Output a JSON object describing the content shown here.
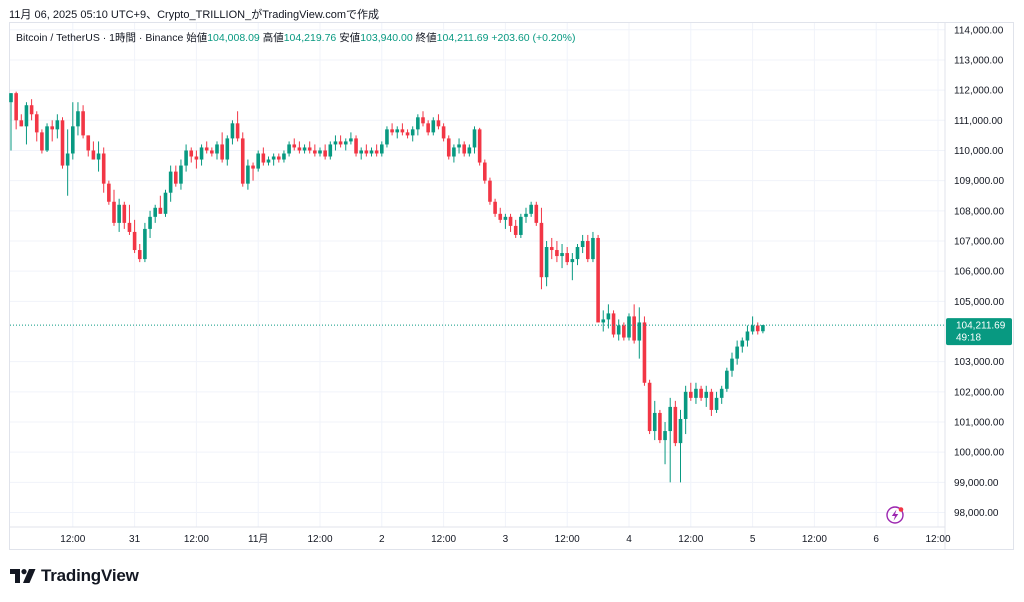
{
  "header": {
    "text": "11月 06, 2025 05:10 UTC+9、Crypto_TRILLION_がTradingView.comで作成"
  },
  "legend": {
    "symbol": "Bitcoin / TetherUS · 1時間 · Binance",
    "open_label": "始値",
    "open": "104,008.09",
    "high_label": "高値",
    "high": "104,219.76",
    "low_label": "安値",
    "low": "103,940.00",
    "close_label": "終値",
    "close": "104,211.69",
    "change": "+203.60 (+0.20%)"
  },
  "price_tag": {
    "price": "104,211.69",
    "countdown": "49:18"
  },
  "branding": {
    "name": "TradingView"
  },
  "colors": {
    "up": "#089981",
    "down": "#f23645",
    "grid": "#f0f3fa",
    "axis_text": "#131722",
    "tag": "#089981"
  },
  "chart_data": {
    "type": "candlestick",
    "interval": "1h",
    "ylim": [
      97700,
      114300
    ],
    "y_ticks": [
      {
        "value": 114000,
        "label": "114,000.00"
      },
      {
        "value": 113000,
        "label": "113,000.00"
      },
      {
        "value": 112000,
        "label": "112,000.00"
      },
      {
        "value": 111000,
        "label": "111,000.00"
      },
      {
        "value": 110000,
        "label": "110,000.00"
      },
      {
        "value": 109000,
        "label": "109,000.00"
      },
      {
        "value": 108000,
        "label": "108,000.00"
      },
      {
        "value": 107000,
        "label": "107,000.00"
      },
      {
        "value": 106000,
        "label": "106,000.00"
      },
      {
        "value": 105000,
        "label": "105,000.00"
      },
      {
        "value": 103000,
        "label": "103,000.00"
      },
      {
        "value": 102000,
        "label": "102,000.00"
      },
      {
        "value": 101000,
        "label": "101,000.00"
      },
      {
        "value": 100000,
        "label": "100,000.00"
      },
      {
        "value": 99000,
        "label": "99,000.00"
      },
      {
        "value": 98000,
        "label": "98,000.00"
      }
    ],
    "x_ticks": [
      {
        "index": 12,
        "label": "12:00"
      },
      {
        "index": 24,
        "label": "31"
      },
      {
        "index": 36,
        "label": "12:00"
      },
      {
        "index": 48,
        "label": "11月"
      },
      {
        "index": 60,
        "label": "12:00"
      },
      {
        "index": 72,
        "label": "2"
      },
      {
        "index": 84,
        "label": "12:00"
      },
      {
        "index": 96,
        "label": "3"
      },
      {
        "index": 108,
        "label": "12:00"
      },
      {
        "index": 120,
        "label": "4"
      },
      {
        "index": 132,
        "label": "12:00"
      },
      {
        "index": 144,
        "label": "5"
      },
      {
        "index": 156,
        "label": "12:00"
      },
      {
        "index": 168,
        "label": "6"
      },
      {
        "index": 180,
        "label": "12:00"
      }
    ],
    "last_price": 104211.69,
    "candles": [
      [
        111600,
        111900,
        110000,
        111900
      ],
      [
        111900,
        111950,
        110700,
        111000
      ],
      [
        111000,
        111200,
        110800,
        110800
      ],
      [
        110800,
        111600,
        110200,
        111500
      ],
      [
        111500,
        111700,
        111000,
        111200
      ],
      [
        111200,
        111300,
        110300,
        110600
      ],
      [
        110600,
        110700,
        109900,
        110000
      ],
      [
        110000,
        110900,
        109950,
        110800
      ],
      [
        110800,
        111000,
        110300,
        110700
      ],
      [
        110700,
        111200,
        110400,
        111000
      ],
      [
        111000,
        111100,
        109400,
        109500
      ],
      [
        109500,
        110700,
        108500,
        109900
      ],
      [
        109900,
        111600,
        109700,
        110800
      ],
      [
        110800,
        111600,
        110500,
        111300
      ],
      [
        111300,
        111500,
        110400,
        110500
      ],
      [
        110500,
        110500,
        109800,
        110000
      ],
      [
        110000,
        110300,
        109700,
        109700
      ],
      [
        109700,
        110300,
        109300,
        109900
      ],
      [
        109900,
        110100,
        108600,
        108900
      ],
      [
        108900,
        109000,
        108200,
        108300
      ],
      [
        108300,
        108700,
        107500,
        107600
      ],
      [
        107600,
        108400,
        107300,
        108200
      ],
      [
        108200,
        108300,
        107400,
        107600
      ],
      [
        107600,
        108200,
        107200,
        107300
      ],
      [
        107300,
        107700,
        106600,
        106700
      ],
      [
        106700,
        106900,
        106300,
        106400
      ],
      [
        106400,
        107600,
        106300,
        107400
      ],
      [
        107400,
        108000,
        107100,
        107800
      ],
      [
        107800,
        108200,
        107600,
        108100
      ],
      [
        108100,
        108500,
        107900,
        107900
      ],
      [
        107900,
        108700,
        107800,
        108600
      ],
      [
        108600,
        109500,
        108300,
        109300
      ],
      [
        109300,
        109500,
        108800,
        108900
      ],
      [
        108900,
        109700,
        108700,
        109500
      ],
      [
        109500,
        110200,
        109300,
        110000
      ],
      [
        110000,
        110100,
        109600,
        109800
      ],
      [
        109800,
        110000,
        109400,
        109700
      ],
      [
        109700,
        110200,
        109500,
        110100
      ],
      [
        110100,
        110300,
        109900,
        110000
      ],
      [
        110000,
        110100,
        109800,
        109900
      ],
      [
        109900,
        110300,
        109700,
        110200
      ],
      [
        110200,
        110600,
        109600,
        109700
      ],
      [
        109700,
        110500,
        109500,
        110400
      ],
      [
        110400,
        111000,
        110200,
        110900
      ],
      [
        110900,
        111300,
        110300,
        110400
      ],
      [
        110400,
        110600,
        108800,
        108900
      ],
      [
        108900,
        109700,
        108700,
        109500
      ],
      [
        109500,
        109600,
        109000,
        109400
      ],
      [
        109400,
        110000,
        109300,
        109900
      ],
      [
        109900,
        110100,
        109500,
        109600
      ],
      [
        109600,
        109800,
        109500,
        109700
      ],
      [
        109700,
        109900,
        109500,
        109800
      ],
      [
        109800,
        109900,
        109600,
        109700
      ],
      [
        109700,
        110000,
        109600,
        109900
      ],
      [
        109900,
        110300,
        109800,
        110200
      ],
      [
        110200,
        110400,
        110000,
        110100
      ],
      [
        110100,
        110300,
        109900,
        110000
      ],
      [
        110000,
        110200,
        109900,
        110100
      ],
      [
        110100,
        110300,
        109900,
        110000
      ],
      [
        110000,
        110200,
        109800,
        109900
      ],
      [
        109900,
        110100,
        109800,
        110000
      ],
      [
        110000,
        110200,
        109700,
        109800
      ],
      [
        109800,
        110300,
        109700,
        110200
      ],
      [
        110200,
        110500,
        110000,
        110300
      ],
      [
        110300,
        110500,
        110100,
        110200
      ],
      [
        110200,
        110400,
        110000,
        110300
      ],
      [
        110300,
        110600,
        110200,
        110400
      ],
      [
        110400,
        110500,
        109800,
        109900
      ],
      [
        109900,
        110100,
        109700,
        110000
      ],
      [
        110000,
        110200,
        109800,
        109900
      ],
      [
        109900,
        110100,
        109800,
        110000
      ],
      [
        110000,
        110200,
        109800,
        109900
      ],
      [
        109900,
        110300,
        109800,
        110200
      ],
      [
        110200,
        110800,
        110100,
        110700
      ],
      [
        110700,
        110900,
        110500,
        110600
      ],
      [
        110600,
        110800,
        110400,
        110700
      ],
      [
        110700,
        110900,
        110500,
        110600
      ],
      [
        110600,
        110700,
        110400,
        110500
      ],
      [
        110500,
        110800,
        110300,
        110700
      ],
      [
        110700,
        111200,
        110500,
        111100
      ],
      [
        111100,
        111300,
        110800,
        110900
      ],
      [
        110900,
        111000,
        110500,
        110600
      ],
      [
        110600,
        111100,
        110500,
        111000
      ],
      [
        111000,
        111200,
        110700,
        110800
      ],
      [
        110800,
        110900,
        110300,
        110400
      ],
      [
        110400,
        110500,
        109700,
        109800
      ],
      [
        109800,
        110200,
        109600,
        110100
      ],
      [
        110100,
        110400,
        109900,
        110200
      ],
      [
        110200,
        110300,
        109800,
        109900
      ],
      [
        109900,
        110200,
        109800,
        110100
      ],
      [
        110100,
        110800,
        109900,
        110700
      ],
      [
        110700,
        110750,
        109500,
        109600
      ],
      [
        109600,
        109700,
        108900,
        109000
      ],
      [
        109000,
        109100,
        108200,
        108300
      ],
      [
        108300,
        108400,
        107800,
        107900
      ],
      [
        107900,
        108100,
        107600,
        107700
      ],
      [
        107700,
        107900,
        107400,
        107800
      ],
      [
        107800,
        107900,
        107300,
        107500
      ],
      [
        107500,
        107700,
        107100,
        107200
      ],
      [
        107200,
        107900,
        107100,
        107800
      ],
      [
        107800,
        108100,
        107600,
        107900
      ],
      [
        107900,
        108300,
        107800,
        108200
      ],
      [
        108200,
        108300,
        107500,
        107600
      ],
      [
        107600,
        108100,
        105400,
        105800
      ],
      [
        105800,
        107000,
        105500,
        106800
      ],
      [
        106800,
        107100,
        106400,
        106700
      ],
      [
        106700,
        107000,
        106300,
        106500
      ],
      [
        106500,
        106900,
        106100,
        106600
      ],
      [
        106600,
        106800,
        106200,
        106300
      ],
      [
        106300,
        106600,
        105700,
        106400
      ],
      [
        106400,
        106900,
        106200,
        106800
      ],
      [
        106800,
        107200,
        106600,
        107000
      ],
      [
        107000,
        107200,
        106300,
        106400
      ],
      [
        106400,
        107300,
        106300,
        107100
      ],
      [
        107100,
        107200,
        104300,
        104300
      ],
      [
        104300,
        104700,
        104000,
        104400
      ],
      [
        104400,
        104900,
        104100,
        104600
      ],
      [
        104600,
        104700,
        103800,
        103900
      ],
      [
        103900,
        104400,
        103700,
        104200
      ],
      [
        104200,
        104300,
        103700,
        103800
      ],
      [
        103800,
        104600,
        103700,
        104500
      ],
      [
        104500,
        104900,
        103600,
        103700
      ],
      [
        103700,
        104800,
        103100,
        104300
      ],
      [
        104300,
        104500,
        102200,
        102300
      ],
      [
        102300,
        102400,
        100600,
        100700
      ],
      [
        100700,
        101700,
        100400,
        101300
      ],
      [
        101300,
        101400,
        100300,
        100400
      ],
      [
        100400,
        101000,
        99600,
        100700
      ],
      [
        100700,
        101800,
        99000,
        101500
      ],
      [
        101500,
        101700,
        100200,
        100300
      ],
      [
        100300,
        101400,
        99000,
        101100
      ],
      [
        101100,
        102200,
        100600,
        102000
      ],
      [
        102000,
        102300,
        101700,
        101800
      ],
      [
        101800,
        102300,
        101600,
        102100
      ],
      [
        102100,
        102200,
        101700,
        101800
      ],
      [
        101800,
        102200,
        101500,
        102000
      ],
      [
        102000,
        102100,
        101200,
        101400
      ],
      [
        101400,
        102000,
        101300,
        101800
      ],
      [
        101800,
        102200,
        101600,
        102100
      ],
      [
        102100,
        102800,
        102000,
        102700
      ],
      [
        102700,
        103300,
        102500,
        103100
      ],
      [
        103100,
        103700,
        102900,
        103500
      ],
      [
        103500,
        103800,
        103300,
        103700
      ],
      [
        103700,
        104200,
        103500,
        104000
      ],
      [
        104000,
        104500,
        103900,
        104200
      ],
      [
        104200,
        104300,
        103900,
        104008.09
      ],
      [
        104008.09,
        104219.76,
        103940,
        104211.69
      ]
    ]
  }
}
